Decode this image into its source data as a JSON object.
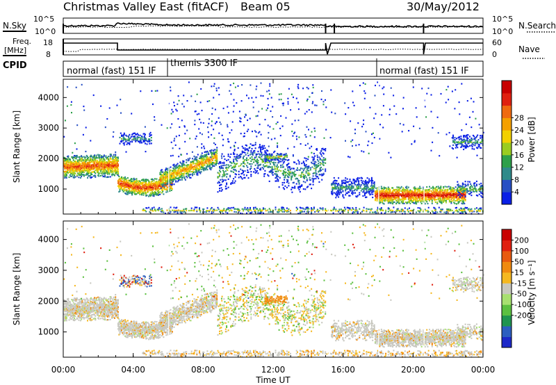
{
  "header": {
    "title": "Christmas Valley East (fitACF)",
    "beam": "Beam 05",
    "date": "30/May/2012"
  },
  "top_panels": {
    "nsky": {
      "left_label": "N.Sky",
      "right_label": "N.Search",
      "left_ticks": [
        "10^5",
        "10^0"
      ],
      "right_ticks": [
        "10^5",
        "10^0"
      ]
    },
    "freq": {
      "left_label_line1": "Freq.",
      "left_label_line2": "[MHz]",
      "right_label": "Nave",
      "left_ticks": [
        "18",
        "8"
      ],
      "right_ticks": [
        "60",
        "0"
      ]
    },
    "cpid": {
      "label": "CPID",
      "segments": [
        {
          "label": "normal (fast) 151 IF",
          "start_h": 0,
          "end_h": 6
        },
        {
          "label": "themis 3300 IF",
          "start_h": 6,
          "end_h": 18
        },
        {
          "label": "normal (fast) 151 IF",
          "start_h": 18,
          "end_h": 24
        }
      ]
    }
  },
  "chart_data": [
    {
      "type": "heatmap",
      "panel": "power",
      "xlabel": "",
      "ylabel": "Slant Range [km]",
      "xlim": [
        0,
        24
      ],
      "ylim": [
        180,
        4600
      ],
      "y_ticks": [
        1000,
        2000,
        3000,
        4000
      ],
      "colorbar": {
        "label": "Power [dB]",
        "ticks": [
          "4",
          "8",
          "12",
          "16",
          "20",
          "24",
          "28"
        ],
        "colors": [
          "#0a1fe6",
          "#274fc4",
          "#2f8a8a",
          "#2da04a",
          "#9acc20",
          "#f2d000",
          "#f5a000",
          "#f06a10",
          "#e02010",
          "#c80000"
        ]
      }
    },
    {
      "type": "heatmap",
      "panel": "velocity",
      "xlabel": "Time UT",
      "ylabel": "Slant Range [km]",
      "xlim": [
        0,
        24
      ],
      "ylim": [
        180,
        4600
      ],
      "x_ticks": [
        "00:00",
        "04:00",
        "08:00",
        "12:00",
        "16:00",
        "20:00",
        "00:00"
      ],
      "y_ticks": [
        1000,
        2000,
        3000,
        4000
      ],
      "colorbar": {
        "label": "Velocity [m s⁻¹]",
        "ticks": [
          "200",
          "100",
          "50",
          "15",
          "-15",
          "-50",
          "-100",
          "-200"
        ],
        "colors": [
          "#1c28c8",
          "#2c5ec0",
          "#1f9450",
          "#5cc040",
          "#a8e070",
          "#c8c8c0",
          "#f5b820",
          "#f08a10",
          "#e85a10",
          "#e02010",
          "#c80000"
        ]
      }
    }
  ]
}
